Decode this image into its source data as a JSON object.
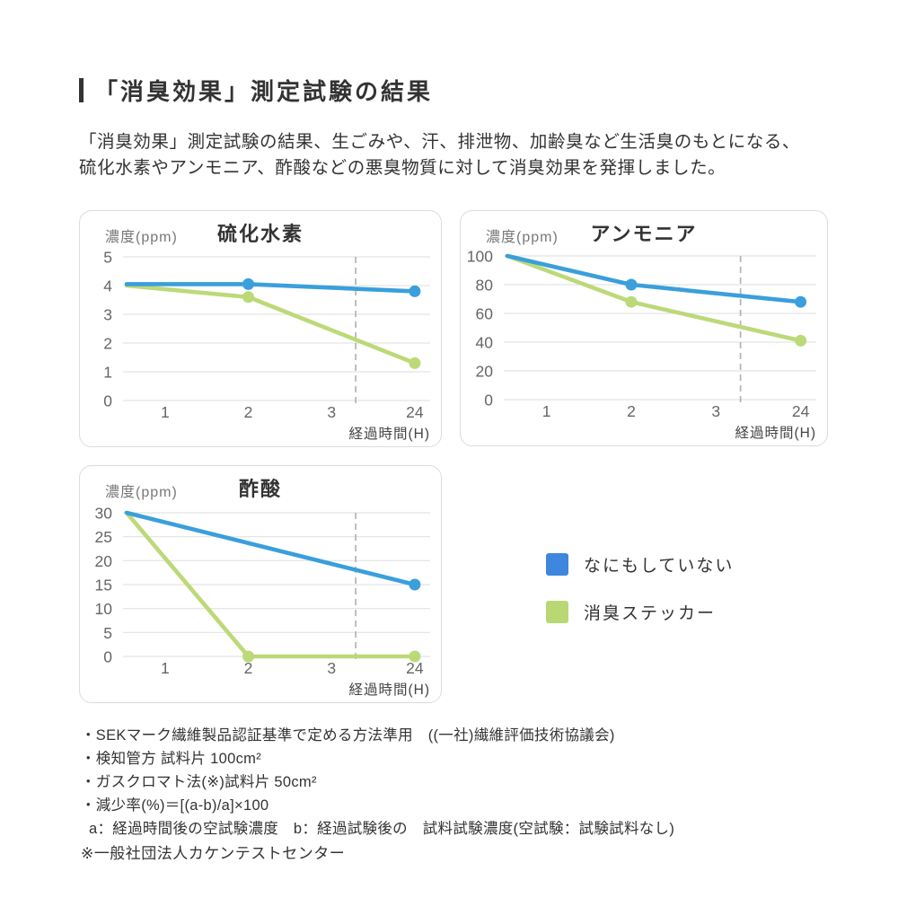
{
  "header": {
    "title": "「消臭効果」測定試験の結果"
  },
  "intro": {
    "line1": "「消臭効果」測定試験の結果、生ごみや、汗、排泄物、加齢臭など生活臭のもとになる、",
    "line2": "硫化水素やアンモニア、酢酸などの悪臭物質に対して消臭効果を発揮しました。"
  },
  "colors": {
    "line_blue": "#3a9fdb",
    "line_green": "#bcd978",
    "legend_blue": "#3f87dd",
    "legend_green": "#b9d873",
    "grid": "#e3e3e3",
    "dashed": "#b3b3b3",
    "tick_text": "#666",
    "axis_label_text": "#444"
  },
  "chart_data": [
    {
      "type": "line",
      "title": "硫化水素",
      "ylabel": "濃度(ppm)",
      "xlabel": "経過時間(H)",
      "x_ticks": [
        "1",
        "2",
        "3",
        "24"
      ],
      "ylim": [
        0,
        5
      ],
      "y_ticks": [
        0,
        1,
        2,
        3,
        4,
        5
      ],
      "axis_break_between": [
        "3",
        "24"
      ],
      "grid": true,
      "series": [
        {
          "name": "なにもしていない",
          "color": "#3a9fdb",
          "points": [
            {
              "x": 0,
              "y": 4.05
            },
            {
              "x": 2,
              "y": 4.05,
              "dot": true
            },
            {
              "x": 24,
              "y": 3.8,
              "dot": true
            }
          ]
        },
        {
          "name": "消臭ステッカー",
          "color": "#bcd978",
          "points": [
            {
              "x": 0,
              "y": 4.0
            },
            {
              "x": 2,
              "y": 3.6,
              "dot": true
            },
            {
              "x": 24,
              "y": 1.3,
              "dot": true
            }
          ]
        }
      ]
    },
    {
      "type": "line",
      "title": "アンモニア",
      "ylabel": "濃度(ppm)",
      "xlabel": "経過時間(H)",
      "x_ticks": [
        "1",
        "2",
        "3",
        "24"
      ],
      "ylim": [
        0,
        100
      ],
      "y_ticks": [
        0,
        20,
        40,
        60,
        80,
        100
      ],
      "axis_break_between": [
        "3",
        "24"
      ],
      "grid": true,
      "series": [
        {
          "name": "なにもしていない",
          "color": "#3a9fdb",
          "points": [
            {
              "x": 0,
              "y": 100
            },
            {
              "x": 2,
              "y": 80,
              "dot": true
            },
            {
              "x": 24,
              "y": 68,
              "dot": true
            }
          ]
        },
        {
          "name": "消臭ステッカー",
          "color": "#bcd978",
          "points": [
            {
              "x": 0,
              "y": 100
            },
            {
              "x": 2,
              "y": 68,
              "dot": true
            },
            {
              "x": 24,
              "y": 41,
              "dot": true
            }
          ]
        }
      ]
    },
    {
      "type": "line",
      "title": "酢酸",
      "ylabel": "濃度(ppm)",
      "xlabel": "経過時間(H)",
      "x_ticks": [
        "1",
        "2",
        "3",
        "24"
      ],
      "ylim": [
        0,
        30
      ],
      "y_ticks": [
        0,
        5,
        10,
        15,
        20,
        25,
        30
      ],
      "axis_break_between": [
        "3",
        "24"
      ],
      "grid": true,
      "series": [
        {
          "name": "なにもしていない",
          "color": "#3a9fdb",
          "points": [
            {
              "x": 0,
              "y": 30
            },
            {
              "x": 24,
              "y": 15,
              "dot": true
            }
          ]
        },
        {
          "name": "消臭ステッカー",
          "color": "#bcd978",
          "points": [
            {
              "x": 0,
              "y": 30
            },
            {
              "x": 2,
              "y": 0,
              "dot": true
            },
            {
              "x": 24,
              "y": 0,
              "dot": true
            }
          ]
        }
      ]
    }
  ],
  "legend": {
    "items": [
      {
        "label": "なにもしていない",
        "color": "#3f87dd"
      },
      {
        "label": "消臭ステッカー",
        "color": "#b9d873"
      }
    ]
  },
  "notes": [
    "・SEKマーク繊維製品認証基準で定める方法準用　((一社)繊維評価技術協議会)",
    "・検知管方 試料片 100cm²",
    "・ガスクロマト法(※)試料片 50cm²",
    "・減少率(%)＝[(a-b)/a]×100",
    "a：経過時間後の空試験濃度　b：経過試験後の　試料試験濃度(空試験：試験試料なし)"
  ],
  "disclaimer": "※一般社団法人カケンテストセンター"
}
